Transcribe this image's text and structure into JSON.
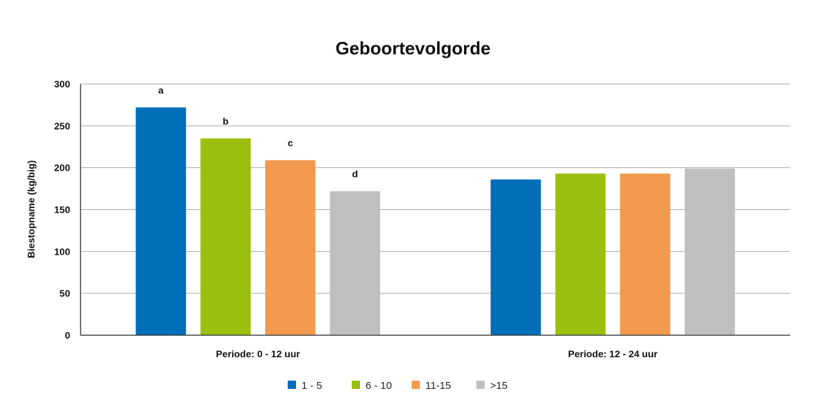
{
  "chart_data": {
    "type": "bar",
    "title": "Geboortevolgorde",
    "ylabel": "Biestopname (kg/big)",
    "xlabel": "",
    "ylim": [
      0,
      300
    ],
    "yticks": [
      0,
      50,
      100,
      150,
      200,
      250,
      300
    ],
    "grid": true,
    "legend_position": "bottom",
    "categories": [
      "Periode: 0 - 12 uur",
      "Periode: 12 - 24 uur"
    ],
    "series": [
      {
        "name": "1 - 5",
        "color": "#006eb8",
        "values": [
          272,
          186
        ],
        "labels": [
          "a",
          ""
        ]
      },
      {
        "name": "6 - 10",
        "color": "#9bbf0f",
        "values": [
          235,
          193
        ],
        "labels": [
          "b",
          ""
        ]
      },
      {
        "name": "11-15",
        "color": "#f29a4e",
        "values": [
          209,
          193
        ],
        "labels": [
          "c",
          ""
        ]
      },
      {
        "name": ">15",
        "color": "#bfbfbf",
        "values": [
          172,
          199
        ],
        "labels": [
          "d",
          ""
        ]
      }
    ]
  }
}
